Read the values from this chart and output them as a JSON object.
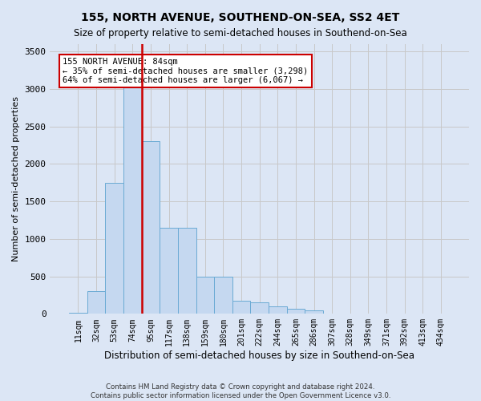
{
  "title": "155, NORTH AVENUE, SOUTHEND-ON-SEA, SS2 4ET",
  "subtitle": "Size of property relative to semi-detached houses in Southend-on-Sea",
  "xlabel": "Distribution of semi-detached houses by size in Southend-on-Sea",
  "ylabel": "Number of semi-detached properties",
  "footer1": "Contains HM Land Registry data © Crown copyright and database right 2024.",
  "footer2": "Contains public sector information licensed under the Open Government Licence v3.0.",
  "bar_values": [
    10,
    300,
    1750,
    3400,
    2300,
    1150,
    1150,
    500,
    500,
    180,
    150,
    100,
    70,
    50,
    0,
    0,
    0,
    0,
    0,
    0,
    0
  ],
  "x_labels": [
    "11sqm",
    "32sqm",
    "53sqm",
    "74sqm",
    "95sqm",
    "117sqm",
    "138sqm",
    "159sqm",
    "180sqm",
    "201sqm",
    "222sqm",
    "244sqm",
    "265sqm",
    "286sqm",
    "307sqm",
    "328sqm",
    "349sqm",
    "371sqm",
    "392sqm",
    "413sqm",
    "434sqm"
  ],
  "bar_color": "#c5d8f0",
  "bar_edge_color": "#6aaad4",
  "grid_color": "#c8c8c8",
  "bg_color": "#dce6f5",
  "red_line_bin_index": 3,
  "annotation_text": "155 NORTH AVENUE: 84sqm\n← 35% of semi-detached houses are smaller (3,298)\n64% of semi-detached houses are larger (6,067) →",
  "annotation_box_facecolor": "#ffffff",
  "annotation_box_edgecolor": "#cc0000",
  "red_line_color": "#cc0000",
  "ylim": [
    0,
    3600
  ],
  "yticks": [
    0,
    500,
    1000,
    1500,
    2000,
    2500,
    3000,
    3500
  ]
}
